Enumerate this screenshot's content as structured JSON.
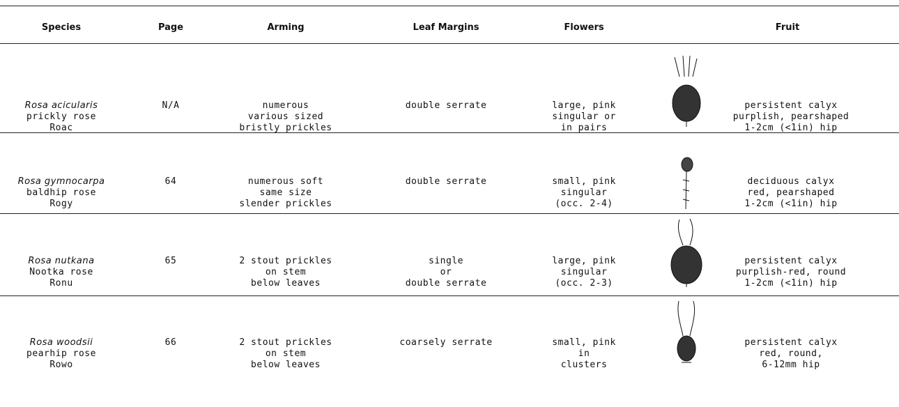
{
  "table": {
    "headers": [
      "Species",
      "Page",
      "Arming",
      "Leaf Margins",
      "Flowers",
      "Fruit"
    ],
    "rows": [
      {
        "species": [
          "Rosa acicularis",
          "prickly rose",
          "Roac"
        ],
        "page": "N/A",
        "arming": [
          "numerous",
          "various sized",
          "bristly prickles"
        ],
        "leaf_margins": [
          "double serrate"
        ],
        "flowers": [
          "large, pink",
          "singular or",
          "in pairs"
        ],
        "fruit": [
          "persistent calyx",
          "purplish, pearshaped",
          "1-2cm (<1in) hip"
        ]
      },
      {
        "species": [
          "Rosa gymnocarpa",
          "baldhip rose",
          "Rogy"
        ],
        "page": "64",
        "arming": [
          "numerous soft",
          "same size",
          "slender prickles"
        ],
        "leaf_margins": [
          "double serrate"
        ],
        "flowers": [
          "small, pink",
          "singular",
          "(occ. 2-4)"
        ],
        "fruit": [
          "deciduous calyx",
          "red, pearshaped",
          "1-2cm (<1in) hip"
        ]
      },
      {
        "species": [
          "Rosa nutkana",
          "Nootka rose",
          "Ronu"
        ],
        "page": "65",
        "arming": [
          "2 stout prickles",
          "on stem",
          "below leaves"
        ],
        "leaf_margins": [
          "single",
          "or",
          "double serrate"
        ],
        "flowers": [
          "large, pink",
          "singular",
          "(occ. 2-3)"
        ],
        "fruit": [
          "persistent calyx",
          "purplish-red, round",
          "1-2cm (<1in) hip"
        ]
      },
      {
        "species": [
          "Rosa woodsii",
          "pearhip rose",
          "Rowo"
        ],
        "page": "66",
        "arming": [
          "2 stout prickles",
          "on stem",
          "below leaves"
        ],
        "leaf_margins": [
          "coarsely serrate"
        ],
        "flowers": [
          "small, pink",
          "in",
          "clusters"
        ],
        "fruit": [
          "persistent calyx",
          "red, round,",
          "6-12mm hip"
        ]
      }
    ]
  }
}
